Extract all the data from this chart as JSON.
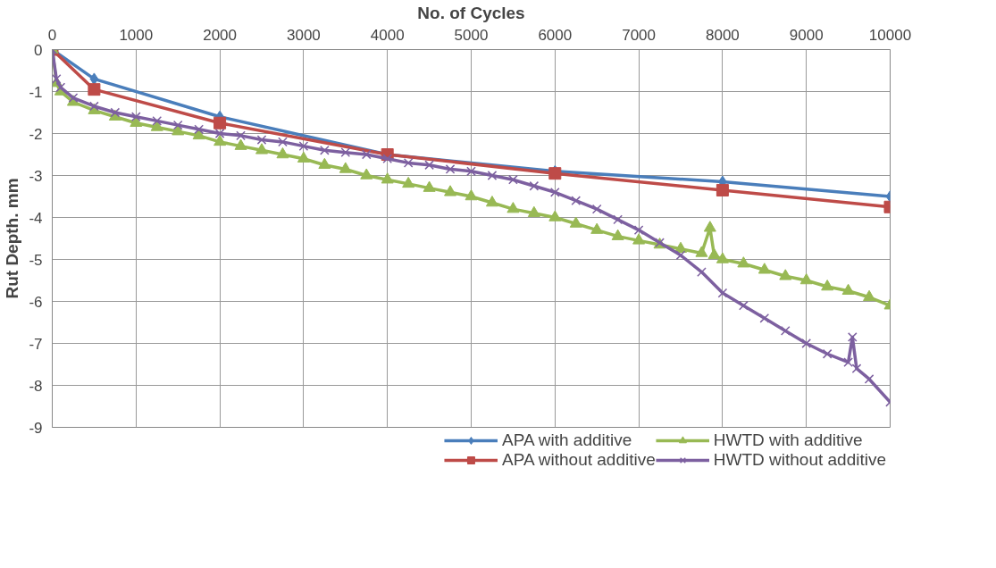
{
  "chart_data": {
    "type": "line",
    "xlabel": "No. of Cycles",
    "ylabel": "Rut Depth. mm",
    "xlim": [
      0,
      10000
    ],
    "xticks": [
      0,
      1000,
      2000,
      3000,
      4000,
      5000,
      6000,
      7000,
      8000,
      9000,
      10000
    ],
    "ylim": [
      -9,
      0
    ],
    "yticks": [
      0,
      -1,
      -2,
      -3,
      -4,
      -5,
      -6,
      -7,
      -8,
      -9
    ],
    "grid": true,
    "legend": "bottom",
    "line_style": "solid",
    "series": [
      {
        "name": "APA with additive",
        "color": "#4a7ebb",
        "marker": "diamond",
        "x": [
          0,
          500,
          2000,
          4000,
          6000,
          8000,
          10000
        ],
        "values": [
          0,
          -0.7,
          -1.6,
          -2.5,
          -2.9,
          -3.15,
          -3.5
        ]
      },
      {
        "name": "APA without additive",
        "color": "#be4b48",
        "marker": "square",
        "x": [
          0,
          500,
          2000,
          4000,
          6000,
          8000,
          10000
        ],
        "values": [
          0,
          -0.95,
          -1.75,
          -2.5,
          -2.95,
          -3.35,
          -3.75
        ]
      },
      {
        "name": "HWTD with additive",
        "color": "#98b954",
        "marker": "triangle",
        "x": [
          0,
          50,
          100,
          250,
          500,
          750,
          1000,
          1250,
          1500,
          1750,
          2000,
          2250,
          2500,
          2750,
          3000,
          3250,
          3500,
          3750,
          4000,
          4250,
          4500,
          4750,
          5000,
          5250,
          5500,
          5750,
          6000,
          6250,
          6500,
          6750,
          7000,
          7250,
          7500,
          7750,
          7850,
          7900,
          8000,
          8250,
          8500,
          8750,
          9000,
          9250,
          9500,
          9750,
          10000
        ],
        "values": [
          0,
          -0.8,
          -1.0,
          -1.25,
          -1.45,
          -1.6,
          -1.75,
          -1.85,
          -1.95,
          -2.05,
          -2.2,
          -2.3,
          -2.4,
          -2.5,
          -2.6,
          -2.75,
          -2.85,
          -3.0,
          -3.1,
          -3.2,
          -3.3,
          -3.4,
          -3.5,
          -3.65,
          -3.8,
          -3.9,
          -4.0,
          -4.15,
          -4.3,
          -4.45,
          -4.55,
          -4.65,
          -4.75,
          -4.85,
          -4.25,
          -4.9,
          -5.0,
          -5.1,
          -5.25,
          -5.4,
          -5.5,
          -5.65,
          -5.75,
          -5.9,
          -6.1
        ]
      },
      {
        "name": "HWTD without additive",
        "color": "#7d60a0",
        "marker": "cross",
        "x": [
          0,
          50,
          100,
          250,
          500,
          750,
          1000,
          1250,
          1500,
          1750,
          2000,
          2250,
          2500,
          2750,
          3000,
          3250,
          3500,
          3750,
          4000,
          4250,
          4500,
          4750,
          5000,
          5250,
          5500,
          5750,
          6000,
          6250,
          6500,
          6750,
          7000,
          7250,
          7500,
          7750,
          8000,
          8250,
          8500,
          8750,
          9000,
          9250,
          9500,
          9550,
          9600,
          9750,
          10000
        ],
        "values": [
          0,
          -0.7,
          -0.9,
          -1.15,
          -1.35,
          -1.5,
          -1.6,
          -1.7,
          -1.8,
          -1.9,
          -2.0,
          -2.05,
          -2.15,
          -2.2,
          -2.3,
          -2.4,
          -2.45,
          -2.5,
          -2.6,
          -2.7,
          -2.75,
          -2.85,
          -2.9,
          -3.0,
          -3.1,
          -3.25,
          -3.4,
          -3.6,
          -3.8,
          -4.05,
          -4.3,
          -4.6,
          -4.9,
          -5.3,
          -5.8,
          -6.1,
          -6.4,
          -6.7,
          -7.0,
          -7.25,
          -7.45,
          -6.85,
          -7.6,
          -7.85,
          -8.4
        ]
      }
    ]
  }
}
